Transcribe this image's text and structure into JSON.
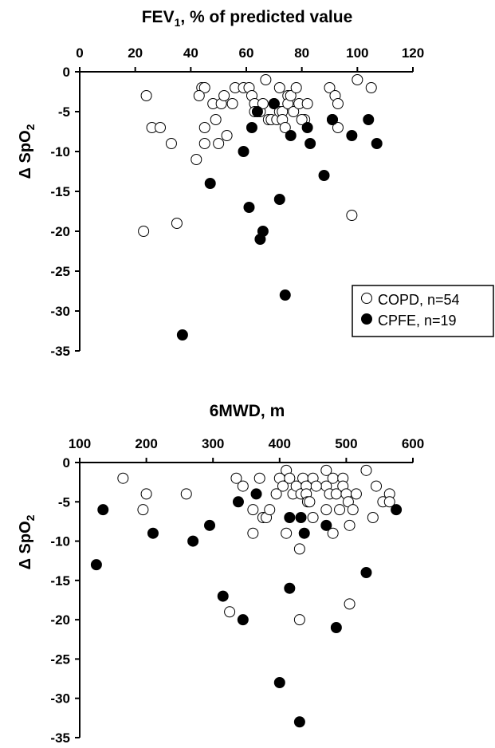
{
  "chart_data": [
    {
      "type": "scatter",
      "title": "FEV",
      "title_subscript": "1",
      "title_rest": ", % of predicted value",
      "ylabel": "Δ SpO",
      "ylabel_subscript": "2",
      "xlim": [
        0,
        120
      ],
      "ylim": [
        -35,
        0
      ],
      "xticks": [
        0,
        20,
        40,
        60,
        80,
        100,
        120
      ],
      "yticks": [
        0,
        -5,
        -10,
        -15,
        -20,
        -25,
        -30,
        -35
      ],
      "x_axis_position": "top",
      "legend": {
        "placement": "right",
        "entries": [
          "COPD, n=54",
          "CPFE, n=19"
        ]
      },
      "series": [
        {
          "name": "COPD, n=54",
          "marker": "open-circle",
          "points": [
            [
              24,
              -3
            ],
            [
              26,
              -7
            ],
            [
              29,
              -7
            ],
            [
              33,
              -9
            ],
            [
              23,
              -20
            ],
            [
              35,
              -19
            ],
            [
              42,
              -11
            ],
            [
              44,
              -2
            ],
            [
              45,
              -2
            ],
            [
              43,
              -3
            ],
            [
              45,
              -7
            ],
            [
              45,
              -9
            ],
            [
              48,
              -4
            ],
            [
              49,
              -6
            ],
            [
              50,
              -9
            ],
            [
              51,
              -4
            ],
            [
              52,
              -3
            ],
            [
              53,
              -8
            ],
            [
              55,
              -4
            ],
            [
              56,
              -2
            ],
            [
              59,
              -2
            ],
            [
              61,
              -2
            ],
            [
              62,
              -3
            ],
            [
              63,
              -4
            ],
            [
              63,
              -5
            ],
            [
              65,
              -5
            ],
            [
              66,
              -4
            ],
            [
              67,
              -1
            ],
            [
              68,
              -6
            ],
            [
              69,
              -6
            ],
            [
              70,
              -4
            ],
            [
              71,
              -6
            ],
            [
              72,
              -2
            ],
            [
              72,
              -5
            ],
            [
              73,
              -5
            ],
            [
              73,
              -6
            ],
            [
              74,
              -7
            ],
            [
              75,
              -3
            ],
            [
              75,
              -4
            ],
            [
              76,
              -3
            ],
            [
              77,
              -5
            ],
            [
              78,
              -2
            ],
            [
              79,
              -4
            ],
            [
              81,
              -6
            ],
            [
              82,
              -4
            ],
            [
              90,
              -2
            ],
            [
              91,
              -6
            ],
            [
              92,
              -3
            ],
            [
              93,
              -4
            ],
            [
              93,
              -7
            ],
            [
              98,
              -18
            ],
            [
              100,
              -1
            ],
            [
              105,
              -2
            ],
            [
              80,
              -6
            ]
          ]
        },
        {
          "name": "CPFE, n=19",
          "marker": "filled-circle",
          "points": [
            [
              37,
              -33
            ],
            [
              47,
              -14
            ],
            [
              59,
              -10
            ],
            [
              62,
              -7
            ],
            [
              61,
              -17
            ],
            [
              64,
              -5
            ],
            [
              65,
              -21
            ],
            [
              66,
              -20
            ],
            [
              70,
              -4
            ],
            [
              72,
              -16
            ],
            [
              74,
              -28
            ],
            [
              76,
              -8
            ],
            [
              82,
              -7
            ],
            [
              83,
              -9
            ],
            [
              88,
              -13
            ],
            [
              91,
              -6
            ],
            [
              98,
              -8
            ],
            [
              104,
              -6
            ],
            [
              107,
              -9
            ]
          ]
        }
      ]
    },
    {
      "type": "scatter",
      "title": "6MWD, m",
      "ylabel": "Δ SpO",
      "ylabel_subscript": "2",
      "xlim": [
        100,
        600
      ],
      "ylim": [
        -35,
        0
      ],
      "xticks": [
        100,
        200,
        300,
        400,
        500,
        600
      ],
      "yticks": [
        0,
        -5,
        -10,
        -15,
        -20,
        -25,
        -30,
        -35
      ],
      "x_axis_position": "top",
      "series": [
        {
          "name": "COPD, n=54",
          "marker": "open-circle",
          "points": [
            [
              165,
              -2
            ],
            [
              200,
              -4
            ],
            [
              195,
              -6
            ],
            [
              260,
              -4
            ],
            [
              325,
              -19
            ],
            [
              335,
              -2
            ],
            [
              345,
              -3
            ],
            [
              360,
              -9
            ],
            [
              370,
              -2
            ],
            [
              375,
              -7
            ],
            [
              380,
              -7
            ],
            [
              400,
              -2
            ],
            [
              405,
              -3
            ],
            [
              410,
              -1
            ],
            [
              410,
              -9
            ],
            [
              415,
              -2
            ],
            [
              420,
              -4
            ],
            [
              425,
              -3
            ],
            [
              430,
              -11
            ],
            [
              430,
              -20
            ],
            [
              432,
              -4
            ],
            [
              435,
              -2
            ],
            [
              440,
              -3
            ],
            [
              440,
              -4
            ],
            [
              442,
              -5
            ],
            [
              445,
              -5
            ],
            [
              450,
              -2
            ],
            [
              450,
              -7
            ],
            [
              470,
              -1
            ],
            [
              470,
              -3
            ],
            [
              470,
              -6
            ],
            [
              475,
              -4
            ],
            [
              480,
              -2
            ],
            [
              480,
              -9
            ],
            [
              485,
              -4
            ],
            [
              490,
              -6
            ],
            [
              495,
              -2
            ],
            [
              495,
              -3
            ],
            [
              500,
              -4
            ],
            [
              503,
              -5
            ],
            [
              505,
              -8
            ],
            [
              505,
              -18
            ],
            [
              510,
              -6
            ],
            [
              515,
              -4
            ],
            [
              530,
              -1
            ],
            [
              540,
              -7
            ],
            [
              545,
              -3
            ],
            [
              555,
              -5
            ],
            [
              565,
              -4
            ],
            [
              565,
              -5
            ],
            [
              385,
              -6
            ],
            [
              455,
              -3
            ],
            [
              395,
              -4
            ],
            [
              360,
              -6
            ]
          ]
        },
        {
          "name": "CPFE, n=19",
          "marker": "filled-circle",
          "points": [
            [
              125,
              -13
            ],
            [
              135,
              -6
            ],
            [
              210,
              -9
            ],
            [
              270,
              -10
            ],
            [
              295,
              -8
            ],
            [
              315,
              -17
            ],
            [
              338,
              -5
            ],
            [
              345,
              -20
            ],
            [
              365,
              -4
            ],
            [
              400,
              -28
            ],
            [
              415,
              -16
            ],
            [
              415,
              -7
            ],
            [
              430,
              -33
            ],
            [
              432,
              -7
            ],
            [
              437,
              -9
            ],
            [
              470,
              -8
            ],
            [
              485,
              -21
            ],
            [
              530,
              -14
            ],
            [
              575,
              -6
            ]
          ]
        }
      ]
    }
  ]
}
